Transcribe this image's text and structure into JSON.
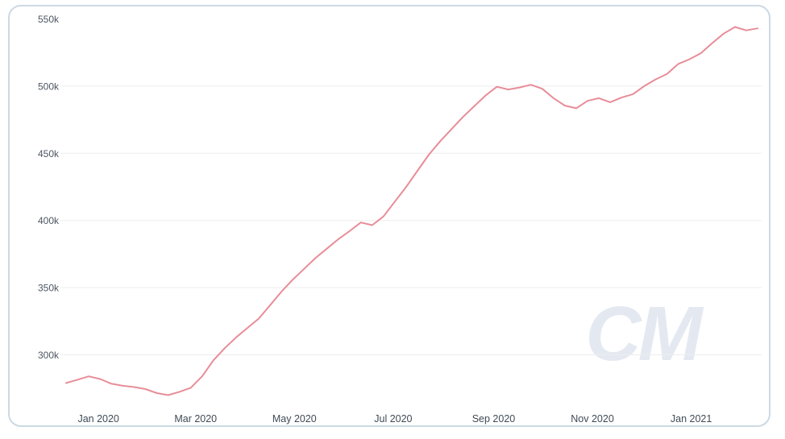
{
  "watermark": "CM",
  "colors": {
    "line": "#e88d98",
    "grid": "#ededed",
    "axis_label": "#4d5662",
    "x_axis_label": "#3f4a55",
    "card_border": "#ccd9e4",
    "watermark": "#e4e9f1",
    "background": "#ffffff"
  },
  "chart_data": {
    "type": "line",
    "title": "",
    "legend": "none",
    "grid": "horizontal",
    "ylim": [
      260000,
      557000
    ],
    "y_ticks": [
      {
        "value": 300000,
        "label": "300k",
        "gridline": true
      },
      {
        "value": 350000,
        "label": "350k",
        "gridline": true
      },
      {
        "value": 400000,
        "label": "400k",
        "gridline": true
      },
      {
        "value": 450000,
        "label": "450k",
        "gridline": true
      },
      {
        "value": 500000,
        "label": "500k",
        "gridline": true
      },
      {
        "value": 550000,
        "label": "550k",
        "gridline": false
      }
    ],
    "x_ticks": [
      {
        "date": "2020-01-01",
        "label": "Jan 2020"
      },
      {
        "date": "2020-03-01",
        "label": "Mar 2020"
      },
      {
        "date": "2020-05-01",
        "label": "May 2020"
      },
      {
        "date": "2020-07-01",
        "label": "Jul 2020"
      },
      {
        "date": "2020-09-01",
        "label": "Sep 2020"
      },
      {
        "date": "2020-11-01",
        "label": "Nov 2020"
      },
      {
        "date": "2021-01-01",
        "label": "Jan 2021"
      }
    ],
    "x_dates": [
      "2019-12-12",
      "2019-12-19",
      "2019-12-26",
      "2020-01-02",
      "2020-01-09",
      "2020-01-16",
      "2020-01-23",
      "2020-01-30",
      "2020-02-06",
      "2020-02-13",
      "2020-02-20",
      "2020-02-27",
      "2020-03-05",
      "2020-03-12",
      "2020-03-19",
      "2020-03-26",
      "2020-04-02",
      "2020-04-09",
      "2020-04-16",
      "2020-04-23",
      "2020-04-30",
      "2020-05-07",
      "2020-05-14",
      "2020-05-21",
      "2020-05-28",
      "2020-06-04",
      "2020-06-11",
      "2020-06-18",
      "2020-06-25",
      "2020-07-02",
      "2020-07-09",
      "2020-07-16",
      "2020-07-23",
      "2020-07-30",
      "2020-08-06",
      "2020-08-13",
      "2020-08-20",
      "2020-08-27",
      "2020-09-03",
      "2020-09-10",
      "2020-09-17",
      "2020-09-24",
      "2020-10-01",
      "2020-10-08",
      "2020-10-15",
      "2020-10-22",
      "2020-10-29",
      "2020-11-05",
      "2020-11-12",
      "2020-11-19",
      "2020-11-26",
      "2020-12-03",
      "2020-12-10",
      "2020-12-17",
      "2020-12-24",
      "2020-12-31",
      "2021-01-07",
      "2021-01-14",
      "2021-01-21",
      "2021-01-28",
      "2021-02-04",
      "2021-02-11"
    ],
    "values": [
      279000,
      281500,
      284000,
      282000,
      278500,
      277000,
      276000,
      274500,
      271500,
      270000,
      272500,
      275500,
      284000,
      296000,
      305000,
      313000,
      320000,
      327000,
      337000,
      347000,
      356000,
      364000,
      372000,
      379000,
      386000,
      392000,
      398500,
      396500,
      403000,
      414000,
      425000,
      437000,
      449000,
      459000,
      468000,
      477000,
      485000,
      493000,
      499500,
      497500,
      499000,
      501000,
      498000,
      491000,
      485500,
      483500,
      489000,
      491000,
      488000,
      491500,
      494000,
      500000,
      505000,
      509000,
      516500,
      520000,
      524500,
      532000,
      539000,
      544000,
      541500,
      543000
    ]
  }
}
